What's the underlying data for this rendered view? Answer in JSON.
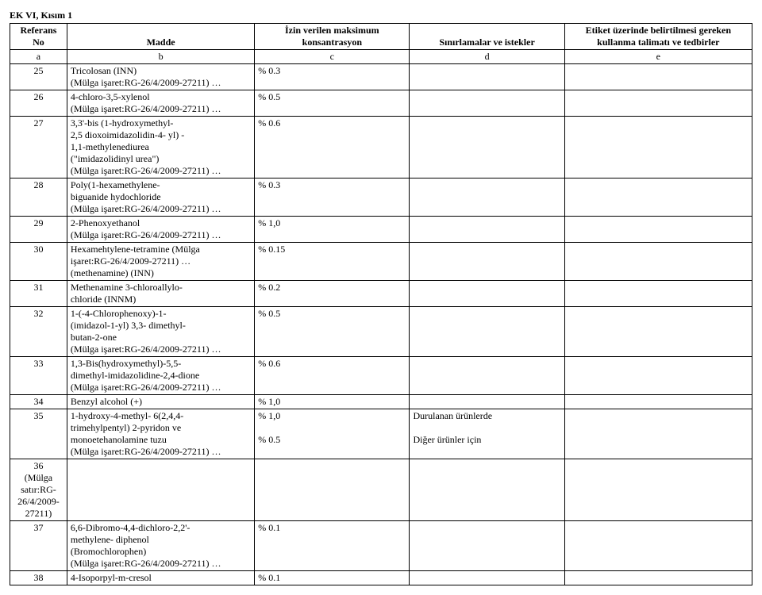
{
  "doc_title": "EK VI, Kısım 1",
  "headers": {
    "ref_no_top": "Referans",
    "ref_no_bottom": "No",
    "madde": "Madde",
    "conc": "İzin verilen maksimum konsantrasyon",
    "req": "Sınırlamalar ve istekler",
    "label_top": "Etiket üzerinde belirtilmesi gereken",
    "label_bottom": "kullanma talimatı ve tedbirler"
  },
  "letters": {
    "a": "a",
    "b": "b",
    "c": "c",
    "d": "d",
    "e": "e"
  },
  "rows": [
    {
      "no": "25",
      "madde": "Tricolosan (INN)\n(Mülga işaret:RG-26/4/2009-27211) …",
      "conc": "% 0.3",
      "req": "",
      "label": ""
    },
    {
      "no": "26",
      "madde": "4-chloro-3,5-xylenol\n(Mülga işaret:RG-26/4/2009-27211) …",
      "conc": "% 0.5",
      "req": "",
      "label": ""
    },
    {
      "no": "27",
      "madde": "3,3'-bis (1-hydroxymethyl-\n2,5 dioxoimidazolidin-4- yl) -\n1,1-methylenediurea\n(\"imidazolidinyl urea\")\n(Mülga işaret:RG-26/4/2009-27211) …",
      "conc": "% 0.6",
      "req": "",
      "label": ""
    },
    {
      "no": "28",
      "madde": "Poly(1-hexamethylene-\nbiguanide hydochloride\n(Mülga işaret:RG-26/4/2009-27211) …",
      "conc": "% 0.3",
      "req": "",
      "label": ""
    },
    {
      "no": "29",
      "madde": "2-Phenoxyethanol\n(Mülga işaret:RG-26/4/2009-27211) …",
      "conc": "% 1,0",
      "req": "",
      "label": ""
    },
    {
      "no": "30",
      "madde": "Hexamehtylene-tetramine (Mülga\nişaret:RG-26/4/2009-27211) …\n(methenamine) (INN)",
      "conc": "% 0.15",
      "req": "",
      "label": ""
    },
    {
      "no": "31",
      "madde": "Methenamine 3-chloroallylo-\nchloride (INNM)",
      "conc": "% 0.2",
      "req": "",
      "label": ""
    },
    {
      "no": "32",
      "madde": "1-(-4-Chlorophenoxy)-1-\n(imidazol-1-yl) 3,3- dimethyl-\nbutan-2-one\n(Mülga işaret:RG-26/4/2009-27211) …",
      "conc": "% 0.5",
      "req": "",
      "label": ""
    },
    {
      "no": "33",
      "madde": "1,3-Bis(hydroxymethyl)-5,5-\ndimethyl-imidazolidine-2,4-dione\n(Mülga işaret:RG-26/4/2009-27211) …",
      "conc": "% 0.6",
      "req": "",
      "label": ""
    },
    {
      "no": "34",
      "madde": "Benzyl alcohol (+)",
      "conc": "% 1,0",
      "req": "",
      "label": ""
    },
    {
      "no": "35",
      "madde": "1-hydroxy-4-methyl- 6(2,4,4-\ntrimehylpentyl) 2-pyridon ve\nmonoetehanolamine tuzu\n(Mülga işaret:RG-26/4/2009-27211) …",
      "conc": "% 1,0\n\n% 0.5",
      "req": "Durulanan ürünlerde\n\nDiğer ürünler için",
      "label": ""
    },
    {
      "no": "36\n(Mülga\nsatır:RG-\n26/4/2009-\n27211)",
      "madde": "",
      "conc": "",
      "req": "",
      "label": ""
    },
    {
      "no": "37",
      "madde": "6,6-Dibromo-4,4-dichloro-2,2'-\nmethylene- diphenol\n(Bromochlorophen)\n(Mülga işaret:RG-26/4/2009-27211) …",
      "conc": "% 0.1",
      "req": "",
      "label": ""
    },
    {
      "no": "38",
      "madde": "4-Isoporpyl-m-cresol",
      "conc": "% 0.1",
      "req": "",
      "label": ""
    }
  ]
}
